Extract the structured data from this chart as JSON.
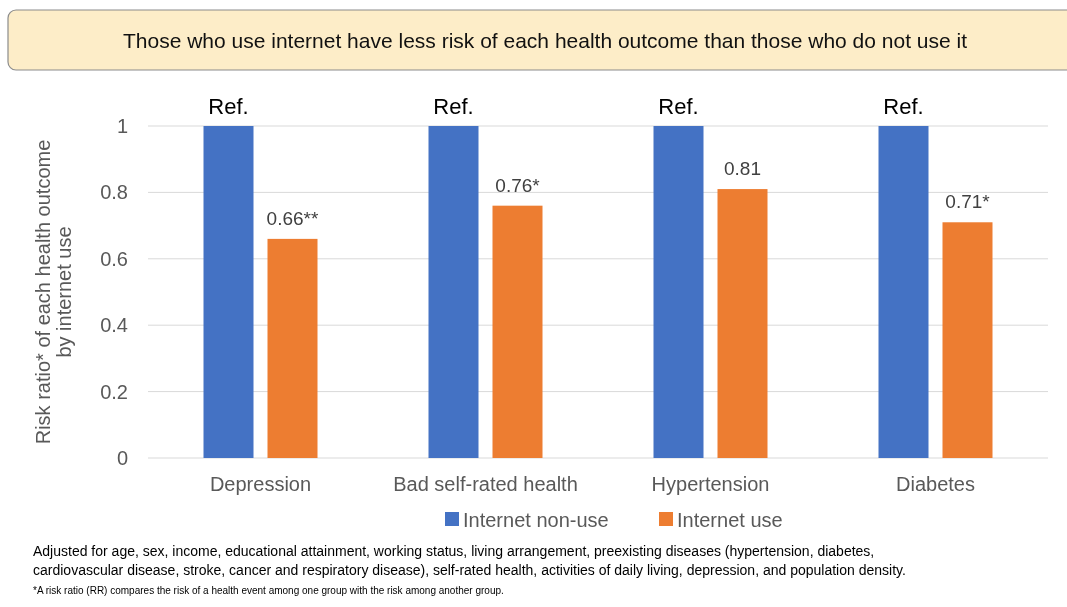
{
  "chart_data": {
    "type": "bar",
    "title": "Those who use internet have less risk of each health outcome than those who do not use it",
    "ylabel": "Risk ratio* of each health outcome by internet use",
    "categories": [
      "Depression",
      "Bad self-rated health",
      "Hypertension",
      "Diabetes"
    ],
    "series": [
      {
        "name": "Internet non-use",
        "color": "#4472c4",
        "values": [
          1,
          1,
          1,
          1
        ],
        "value_labels": [
          "Ref.",
          "Ref.",
          "Ref.",
          "Ref."
        ]
      },
      {
        "name": "Internet use",
        "color": "#ed7d31",
        "values": [
          0.66,
          0.76,
          0.81,
          0.71
        ],
        "value_labels": [
          "0.66**",
          "0.76*",
          "0.81",
          "0.71*"
        ]
      }
    ],
    "ylim": [
      0,
      1
    ],
    "yticks": [
      0,
      0.2,
      0.4,
      0.6,
      0.8,
      1
    ],
    "grid": "y",
    "legend": "bottom",
    "annotations": [
      "Adjusted for age, sex, income, educational attainment, working status, living arrangement, preexisting diseases (hypertension, diabetes, cardiovascular disease, stroke, cancer and respiratory disease), self-rated health, activities of daily living, depression, and population density.",
      "*A risk ratio (RR) compares the risk of a health event among one group with the risk among another group."
    ]
  }
}
